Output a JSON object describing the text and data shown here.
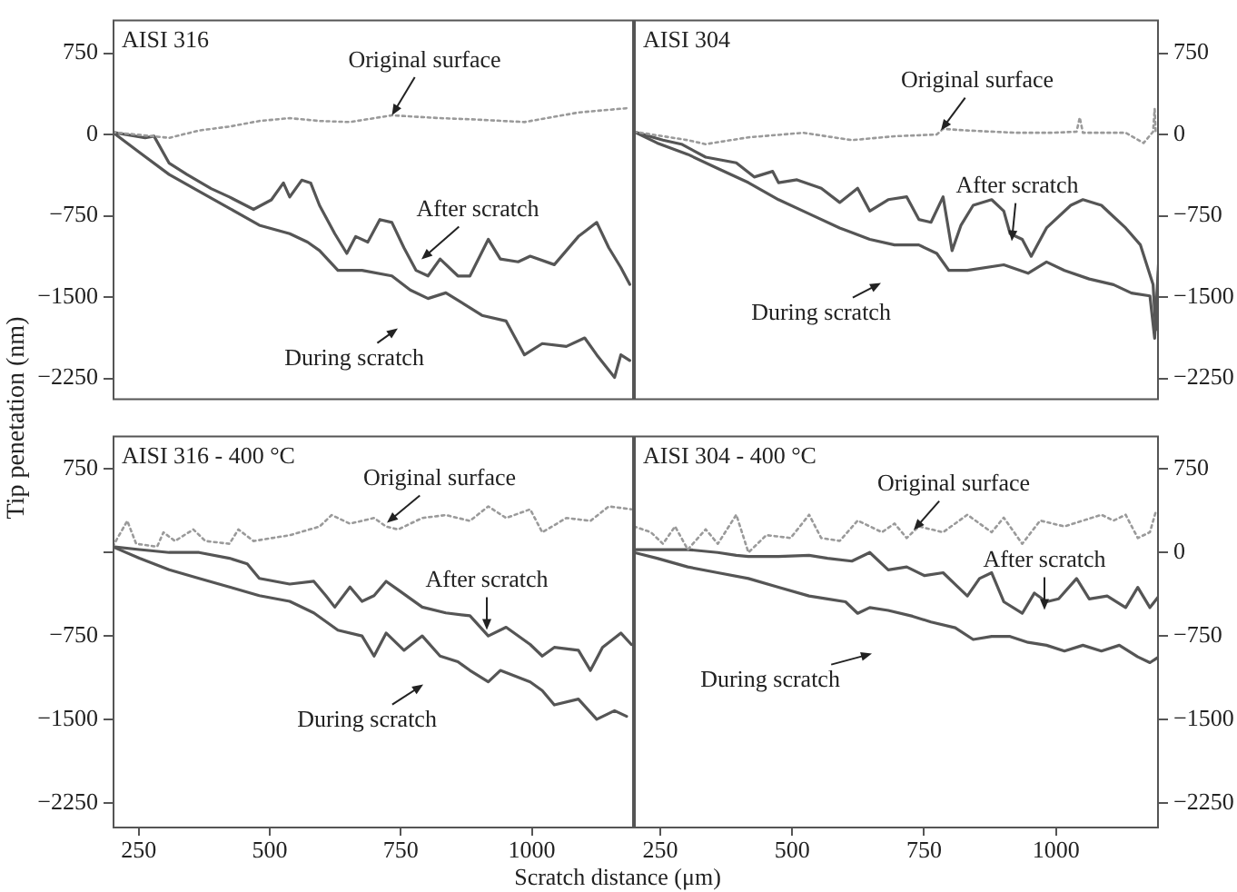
{
  "chart_data": [
    {
      "type": "line",
      "title": "AISI 316",
      "ylabel": "Tip penetation (nm)",
      "xlim": [
        200,
        1195
      ],
      "ylim": [
        -2450,
        1060
      ],
      "yticks": [
        750,
        0,
        -750,
        -1500,
        -2250
      ],
      "tick_labels": "y",
      "annotations": [
        {
          "text": "Original surface",
          "x": 733,
          "y": 177
        },
        "After scratch",
        "During scratch"
      ],
      "series": [
        {
          "color": "#9a9a9a",
          "line_style": "dotted",
          "x": [
            200,
            308,
            365,
            423,
            480,
            538,
            595,
            653,
            733,
            825,
            882,
            986,
            1089,
            1187
          ],
          "values": [
            21,
            -31,
            37,
            73,
            125,
            151,
            125,
            115,
            177,
            151,
            141,
            115,
            203,
            245
          ]
        },
        {
          "color": "#555555",
          "line_style": "solid",
          "x": [
            200,
            262,
            279,
            308,
            342,
            388,
            423,
            469,
            503,
            526,
            538,
            561,
            578,
            595,
            624,
            647,
            664,
            687,
            710,
            733,
            756,
            779,
            802,
            825,
            859,
            882,
            917,
            940,
            974,
            997,
            1043,
            1089,
            1124,
            1147,
            1170,
            1187
          ],
          "values": [
            21,
            -31,
            -15,
            -265,
            -369,
            -499,
            -577,
            -691,
            -603,
            -447,
            -577,
            -421,
            -447,
            -655,
            -915,
            -1097,
            -941,
            -993,
            -785,
            -811,
            -1045,
            -1253,
            -1305,
            -1149,
            -1305,
            -1305,
            -967,
            -1149,
            -1175,
            -1123,
            -1201,
            -941,
            -811,
            -1045,
            -1227,
            -1383
          ]
        },
        {
          "color": "#555555",
          "line_style": "solid",
          "x": [
            200,
            250,
            308,
            365,
            423,
            480,
            538,
            572,
            595,
            630,
            676,
            733,
            768,
            802,
            836,
            871,
            905,
            951,
            986,
            1020,
            1066,
            1101,
            1124,
            1158,
            1170,
            1187
          ],
          "values": [
            21,
            -161,
            -369,
            -525,
            -681,
            -837,
            -915,
            -993,
            -1071,
            -1253,
            -1253,
            -1305,
            -1435,
            -1513,
            -1461,
            -1565,
            -1669,
            -1721,
            -2033,
            -1929,
            -1955,
            -1877,
            -2033,
            -2241,
            -2033,
            -2085
          ]
        }
      ]
    },
    {
      "type": "line",
      "title": "AISI 304",
      "xlim": [
        200,
        1195
      ],
      "ylim": [
        -2450,
        1060
      ],
      "yticks": [
        750,
        0,
        -750,
        -1500,
        -2250
      ],
      "tick_labels": "y",
      "annotations": [
        "Original surface",
        "After scratch",
        "During scratch"
      ],
      "series": [
        {
          "color": "#9a9a9a",
          "line_style": "dotted",
          "x": [
            200,
            302,
            336,
            417,
            521,
            613,
            694,
            774,
            786,
            832,
            924,
            993,
            1039,
            1045,
            1051,
            1132,
            1166,
            1184,
            1187,
            1189
          ],
          "values": [
            26,
            -52,
            -89,
            -26,
            16,
            -52,
            -16,
            0,
            52,
            37,
            16,
            16,
            26,
            157,
            16,
            16,
            -78,
            26,
            235,
            0
          ]
        },
        {
          "color": "#555555",
          "line_style": "solid",
          "x": [
            200,
            255,
            290,
            336,
            394,
            428,
            463,
            474,
            509,
            555,
            590,
            624,
            647,
            682,
            717,
            740,
            763,
            786,
            803,
            820,
            843,
            878,
            901,
            913,
            936,
            953,
            982,
            1028,
            1051,
            1086,
            1109,
            1132,
            1160,
            1184,
            1189,
            1195
          ],
          "values": [
            26,
            -52,
            -89,
            -209,
            -261,
            -392,
            -340,
            -444,
            -418,
            -496,
            -627,
            -496,
            -706,
            -601,
            -575,
            -784,
            -810,
            -575,
            -1071,
            -836,
            -653,
            -601,
            -706,
            -915,
            -967,
            -1124,
            -862,
            -653,
            -601,
            -653,
            -758,
            -862,
            -1019,
            -1385,
            -1803,
            -1176
          ]
        },
        {
          "color": "#555555",
          "line_style": "solid",
          "x": [
            200,
            244,
            302,
            359,
            417,
            474,
            532,
            590,
            647,
            694,
            740,
            774,
            797,
            832,
            901,
            947,
            982,
            1016,
            1063,
            1109,
            1143,
            1178,
            1187,
            1195
          ],
          "values": [
            26,
            -78,
            -183,
            -314,
            -444,
            -601,
            -732,
            -862,
            -967,
            -1019,
            -1019,
            -1097,
            -1254,
            -1254,
            -1202,
            -1280,
            -1176,
            -1254,
            -1333,
            -1385,
            -1463,
            -1489,
            -1881,
            -1124
          ]
        }
      ]
    },
    {
      "type": "line",
      "title": "AISI 316 - 400 °C",
      "xlabel": "Scratch distance (μm)",
      "xlim": [
        200,
        1195
      ],
      "ylim": [
        -2480,
        1050
      ],
      "xticks": [
        250,
        500,
        750,
        1000
      ],
      "yticks": [
        750,
        {
          "value": 0,
          "label": null
        },
        -750,
        -1500,
        -2250
      ],
      "annotations": [
        "Original surface",
        "After scratch",
        "During scratch"
      ],
      "series": [
        {
          "color": "#9a9a9a",
          "line_style": "dotted",
          "x": [
            200,
            228,
            245,
            285,
            297,
            319,
            354,
            377,
            423,
            440,
            469,
            538,
            595,
            618,
            653,
            699,
            722,
            745,
            791,
            836,
            882,
            917,
            951,
            997,
            1020,
            1066,
            1112,
            1147,
            1190
          ],
          "values": [
            52,
            284,
            78,
            52,
            181,
            103,
            207,
            103,
            78,
            207,
            103,
            155,
            233,
            336,
            259,
            310,
            233,
            207,
            310,
            336,
            284,
            414,
            310,
            388,
            181,
            310,
            284,
            414,
            388
          ]
        },
        {
          "color": "#555555",
          "line_style": "solid",
          "x": [
            200,
            251,
            308,
            365,
            423,
            457,
            480,
            538,
            584,
            607,
            624,
            653,
            676,
            699,
            722,
            745,
            791,
            836,
            882,
            917,
            951,
            997,
            1020,
            1043,
            1089,
            1112,
            1135,
            1170,
            1190
          ],
          "values": [
            52,
            26,
            0,
            0,
            -52,
            -103,
            -233,
            -284,
            -259,
            -388,
            -491,
            -310,
            -439,
            -388,
            -259,
            -336,
            -491,
            -543,
            -569,
            -750,
            -672,
            -827,
            -931,
            -853,
            -879,
            -1060,
            -853,
            -724,
            -827
          ]
        },
        {
          "color": "#555555",
          "line_style": "solid",
          "x": [
            200,
            251,
            308,
            365,
            423,
            480,
            538,
            584,
            630,
            676,
            699,
            722,
            756,
            791,
            825,
            859,
            882,
            917,
            940,
            997,
            1020,
            1043,
            1089,
            1124,
            1158,
            1181
          ],
          "values": [
            52,
            -52,
            -155,
            -233,
            -310,
            -388,
            -439,
            -543,
            -698,
            -750,
            -931,
            -724,
            -879,
            -750,
            -931,
            -982,
            -1060,
            -1163,
            -1060,
            -1163,
            -1241,
            -1370,
            -1318,
            -1499,
            -1422,
            -1473
          ]
        }
      ]
    },
    {
      "type": "line",
      "title": "AISI 304 - 400 °C",
      "xlim": [
        200,
        1195
      ],
      "ylim": [
        -2480,
        1050
      ],
      "xticks": [
        250,
        500,
        750,
        1000
      ],
      "yticks": [
        750,
        0,
        -750,
        -1500,
        -2250
      ],
      "annotations": [
        "Original surface",
        "After scratch",
        "During scratch"
      ],
      "series": [
        {
          "color": "#9a9a9a",
          "line_style": "dotted",
          "x": [
            200,
            232,
            255,
            278,
            302,
            336,
            359,
            394,
            417,
            451,
            497,
            532,
            555,
            590,
            624,
            670,
            694,
            717,
            740,
            786,
            832,
            878,
            901,
            936,
            970,
            1016,
            1086,
            1109,
            1132,
            1155,
            1178,
            1189
          ],
          "values": [
            234,
            182,
            78,
            234,
            26,
            208,
            78,
            339,
            0,
            156,
            130,
            339,
            130,
            104,
            287,
            182,
            260,
            130,
            234,
            182,
            339,
            182,
            313,
            78,
            287,
            234,
            339,
            287,
            339,
            130,
            182,
            365
          ]
        },
        {
          "color": "#555555",
          "line_style": "solid",
          "x": [
            200,
            244,
            302,
            359,
            394,
            417,
            474,
            532,
            567,
            613,
            647,
            682,
            717,
            751,
            786,
            809,
            832,
            855,
            878,
            901,
            936,
            959,
            982,
            1005,
            1039,
            1063,
            1097,
            1132,
            1155,
            1178,
            1195
          ],
          "values": [
            26,
            26,
            26,
            0,
            -26,
            -36,
            -36,
            -26,
            -52,
            -78,
            0,
            -156,
            -130,
            -208,
            -182,
            -287,
            -391,
            -234,
            -182,
            -443,
            -547,
            -365,
            -443,
            -417,
            -234,
            -417,
            -391,
            -495,
            -313,
            -495,
            -391
          ]
        },
        {
          "color": "#555555",
          "line_style": "solid",
          "x": [
            200,
            244,
            302,
            359,
            417,
            474,
            532,
            567,
            601,
            624,
            647,
            682,
            728,
            763,
            809,
            843,
            878,
            913,
            947,
            982,
            1016,
            1051,
            1086,
            1120,
            1155,
            1178,
            1195
          ],
          "values": [
            0,
            -52,
            -130,
            -182,
            -234,
            -313,
            -391,
            -417,
            -443,
            -547,
            -495,
            -521,
            -573,
            -625,
            -677,
            -782,
            -755,
            -755,
            -808,
            -834,
            -886,
            -834,
            -886,
            -834,
            -938,
            -990,
            -938
          ]
        }
      ]
    }
  ]
}
